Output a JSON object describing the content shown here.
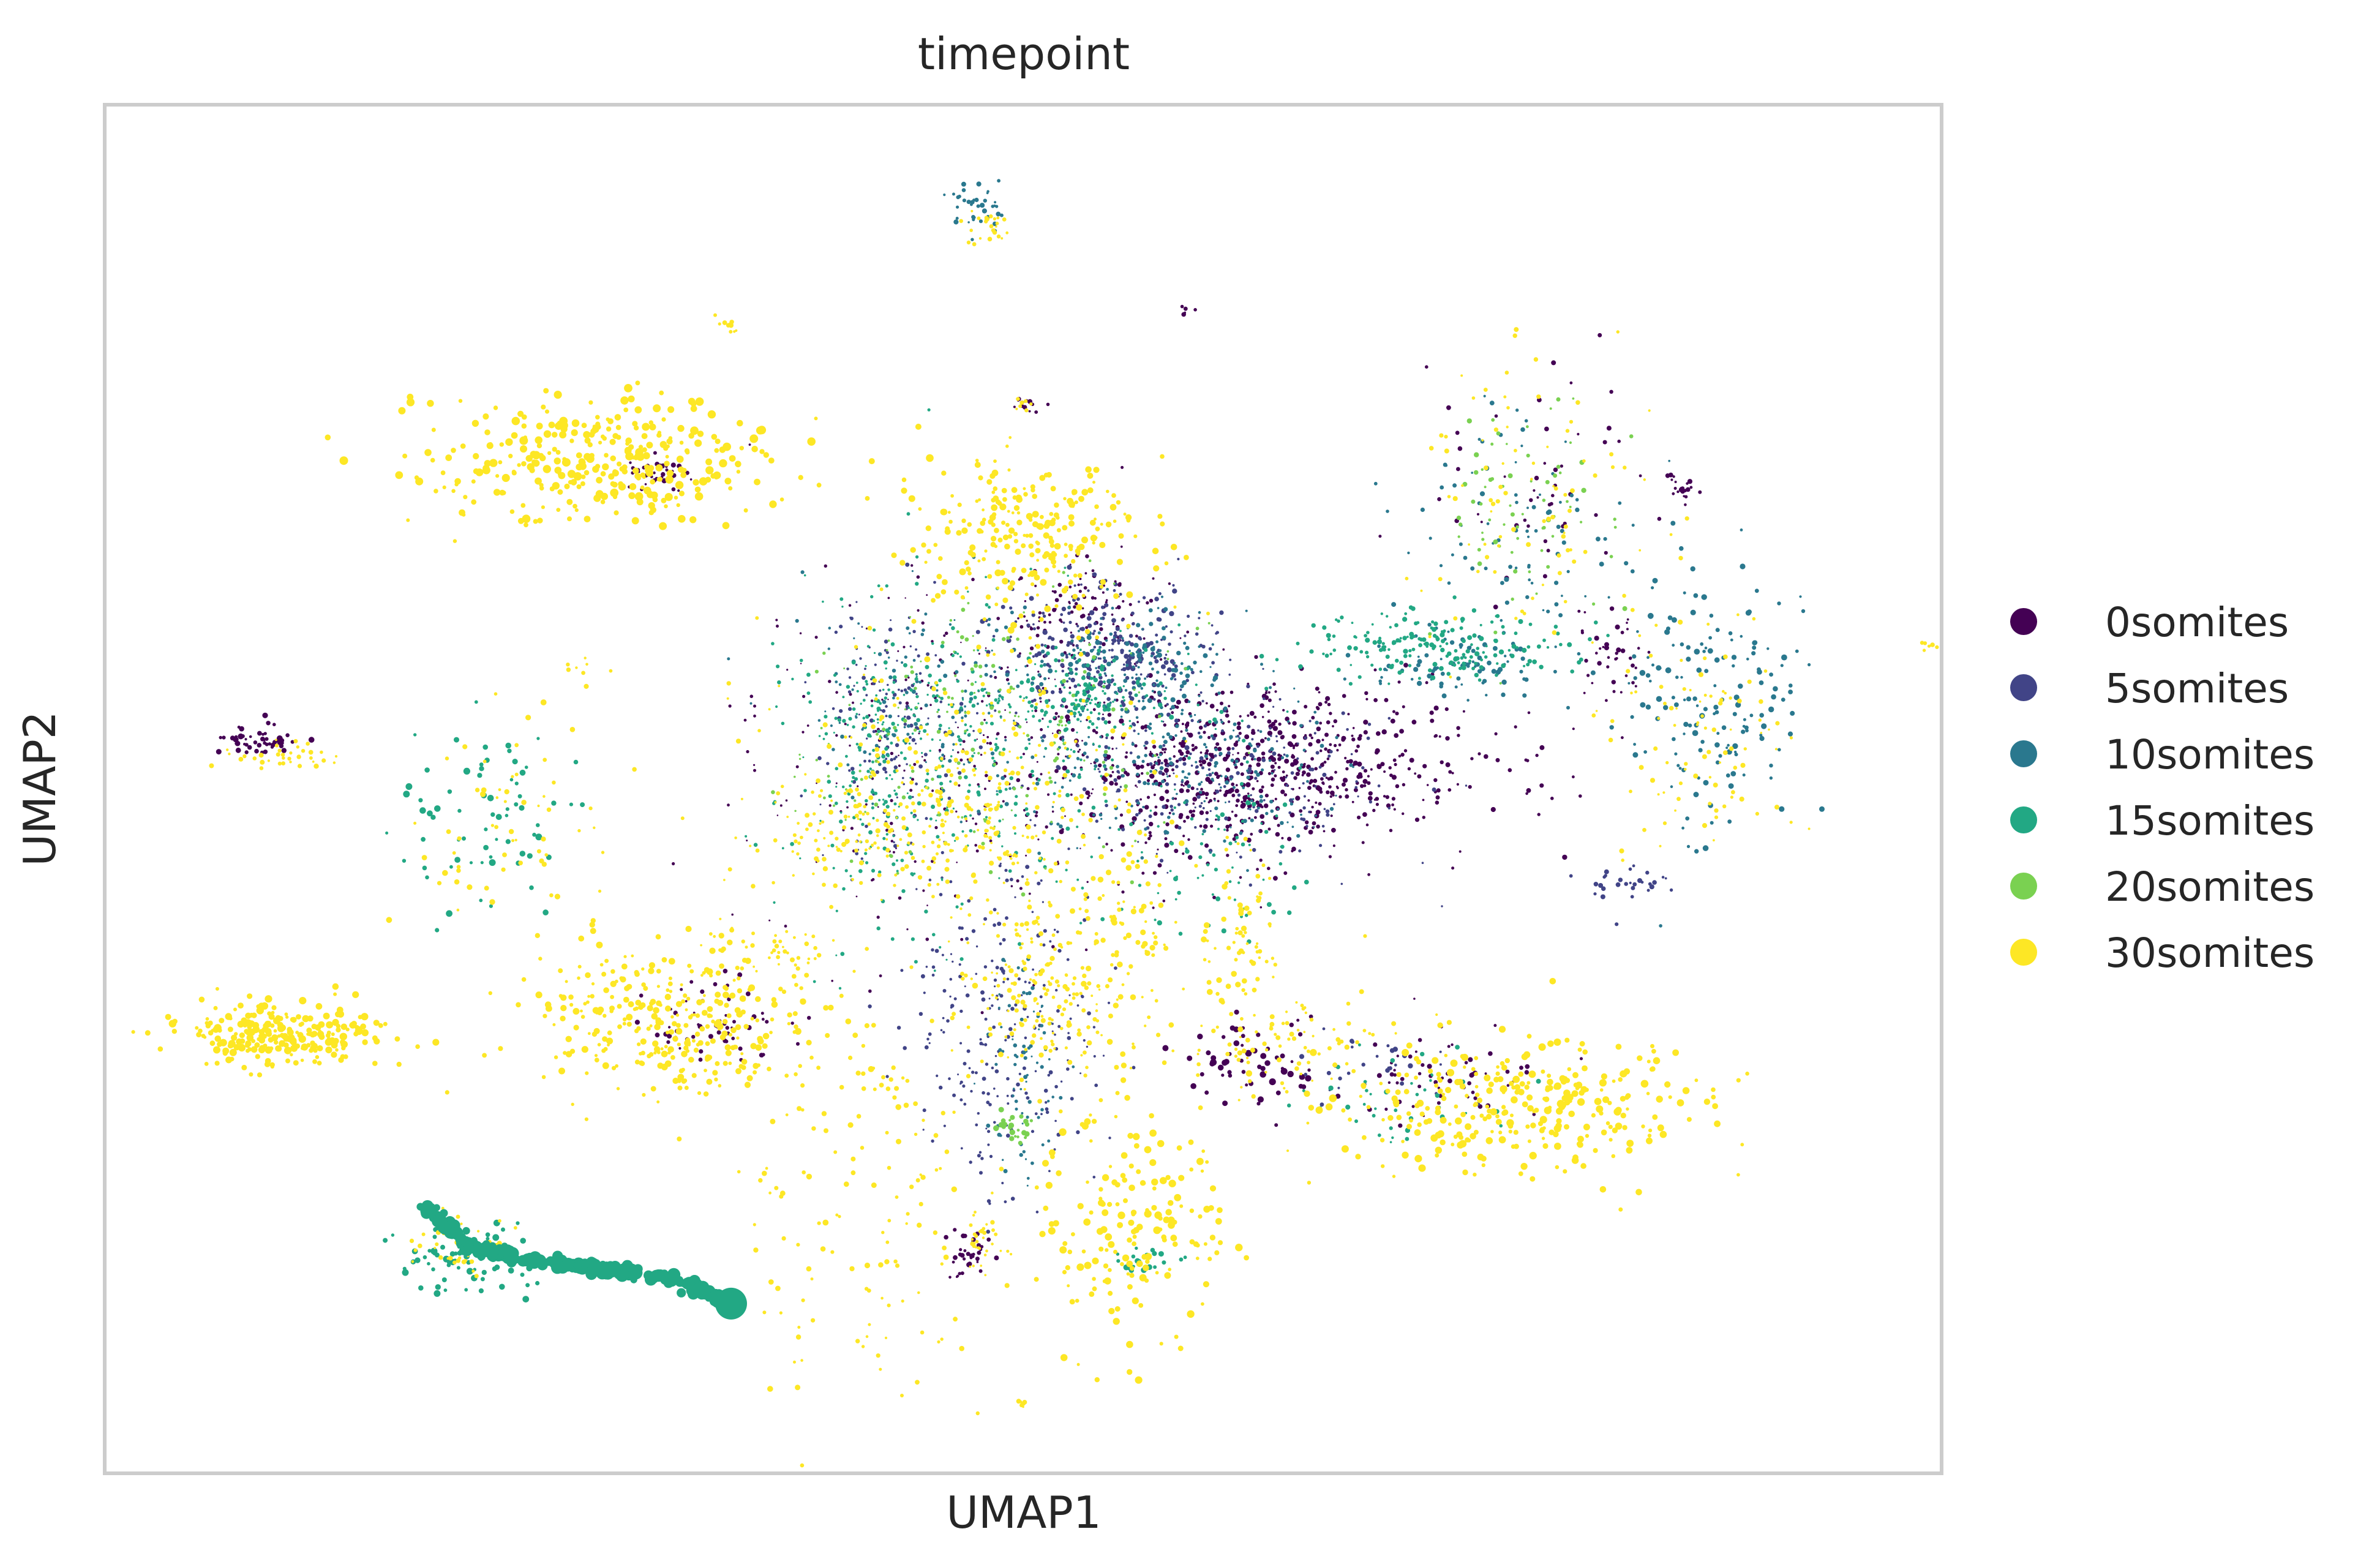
{
  "chart_data": {
    "type": "scatter",
    "title": "timepoint",
    "xlabel": "UMAP1",
    "ylabel": "UMAP2",
    "xlim": [
      0,
      1
    ],
    "ylim": [
      0,
      1
    ],
    "grid": false,
    "ticks": false,
    "legend_position": "right",
    "series": [
      {
        "name": "0somites",
        "color": "#440154"
      },
      {
        "name": "5somites",
        "color": "#414487"
      },
      {
        "name": "10somites",
        "color": "#2a788e"
      },
      {
        "name": "15somites",
        "color": "#22a884"
      },
      {
        "name": "20somites",
        "color": "#7ad151"
      },
      {
        "name": "30somites",
        "color": "#fde725"
      }
    ],
    "clusters": [
      {
        "series": "30somites",
        "cx": 0.095,
        "cy": 0.32,
        "sx": 0.03,
        "sy": 0.012,
        "n": 260,
        "r": 4.5
      },
      {
        "series": "0somites",
        "cx": 0.083,
        "cy": 0.535,
        "sx": 0.012,
        "sy": 0.006,
        "n": 50,
        "r": 3.5
      },
      {
        "series": "30somites",
        "cx": 0.1,
        "cy": 0.525,
        "sx": 0.015,
        "sy": 0.006,
        "n": 35,
        "r": 3.0
      },
      {
        "series": "15somites",
        "cx": 0.21,
        "cy": 0.48,
        "sx": 0.025,
        "sy": 0.035,
        "n": 70,
        "r": 4.0
      },
      {
        "series": "30somites",
        "cx": 0.215,
        "cy": 0.47,
        "sx": 0.03,
        "sy": 0.04,
        "n": 60,
        "r": 3.5
      },
      {
        "series": "30somites",
        "cx": 0.27,
        "cy": 0.74,
        "sx": 0.05,
        "sy": 0.022,
        "n": 330,
        "r": 5.0
      },
      {
        "series": "0somites",
        "cx": 0.3,
        "cy": 0.73,
        "sx": 0.008,
        "sy": 0.006,
        "n": 40,
        "r": 3.0
      },
      {
        "series": "30somites",
        "cx": 0.31,
        "cy": 0.33,
        "sx": 0.04,
        "sy": 0.03,
        "n": 330,
        "r": 4.0
      },
      {
        "series": "0somites",
        "cx": 0.335,
        "cy": 0.33,
        "sx": 0.02,
        "sy": 0.02,
        "n": 60,
        "r": 3.0
      },
      {
        "series": "15somites",
        "cx": 0.2,
        "cy": 0.155,
        "sx": 0.02,
        "sy": 0.012,
        "n": 80,
        "r": 4.0
      },
      {
        "series": "30somites",
        "cx": 0.195,
        "cy": 0.165,
        "sx": 0.015,
        "sy": 0.01,
        "n": 40,
        "r": 3.0
      },
      {
        "series": "30somites",
        "cx": 0.505,
        "cy": 0.68,
        "sx": 0.03,
        "sy": 0.03,
        "n": 260,
        "r": 4.0
      },
      {
        "series": "5somites",
        "cx": 0.545,
        "cy": 0.6,
        "sx": 0.03,
        "sy": 0.025,
        "n": 280,
        "r": 3.0
      },
      {
        "series": "10somites",
        "cx": 0.56,
        "cy": 0.59,
        "sx": 0.025,
        "sy": 0.02,
        "n": 140,
        "r": 3.0
      },
      {
        "series": "0somites",
        "cx": 0.53,
        "cy": 0.63,
        "sx": 0.02,
        "sy": 0.02,
        "n": 110,
        "r": 2.5
      },
      {
        "series": "15somites",
        "cx": 0.54,
        "cy": 0.57,
        "sx": 0.015,
        "sy": 0.015,
        "n": 80,
        "r": 3.0
      },
      {
        "series": "0somites",
        "cx": 0.625,
        "cy": 0.515,
        "sx": 0.06,
        "sy": 0.03,
        "n": 700,
        "r": 3.0
      },
      {
        "series": "10somites",
        "cx": 0.595,
        "cy": 0.52,
        "sx": 0.04,
        "sy": 0.03,
        "n": 220,
        "r": 2.5
      },
      {
        "series": "5somites",
        "cx": 0.6,
        "cy": 0.505,
        "sx": 0.05,
        "sy": 0.03,
        "n": 220,
        "r": 2.5
      },
      {
        "series": "15somites",
        "cx": 0.48,
        "cy": 0.52,
        "sx": 0.055,
        "sy": 0.06,
        "n": 300,
        "r": 2.5
      },
      {
        "series": "0somites",
        "cx": 0.47,
        "cy": 0.52,
        "sx": 0.06,
        "sy": 0.065,
        "n": 280,
        "r": 2.0
      },
      {
        "series": "30somites",
        "cx": 0.46,
        "cy": 0.51,
        "sx": 0.05,
        "sy": 0.05,
        "n": 260,
        "r": 3.0
      },
      {
        "series": "20somites",
        "cx": 0.48,
        "cy": 0.54,
        "sx": 0.05,
        "sy": 0.05,
        "n": 180,
        "r": 2.5
      },
      {
        "series": "10somites",
        "cx": 0.46,
        "cy": 0.56,
        "sx": 0.04,
        "sy": 0.04,
        "n": 160,
        "r": 2.5
      },
      {
        "series": "5somites",
        "cx": 0.43,
        "cy": 0.54,
        "sx": 0.02,
        "sy": 0.05,
        "n": 150,
        "r": 2.5
      },
      {
        "series": "15somites",
        "cx": 0.42,
        "cy": 0.52,
        "sx": 0.015,
        "sy": 0.06,
        "n": 120,
        "r": 2.5
      },
      {
        "series": "30somites",
        "cx": 0.44,
        "cy": 0.465,
        "sx": 0.05,
        "sy": 0.02,
        "n": 150,
        "r": 3.0
      },
      {
        "series": "15somites",
        "cx": 0.48,
        "cy": 0.56,
        "sx": 0.05,
        "sy": 0.015,
        "n": 100,
        "r": 2.5
      },
      {
        "series": "30somites",
        "cx": 0.505,
        "cy": 0.36,
        "sx": 0.02,
        "sy": 0.03,
        "n": 160,
        "r": 3.0
      },
      {
        "series": "5somites",
        "cx": 0.49,
        "cy": 0.33,
        "sx": 0.025,
        "sy": 0.06,
        "n": 240,
        "r": 2.5
      },
      {
        "series": "10somites",
        "cx": 0.5,
        "cy": 0.3,
        "sx": 0.01,
        "sy": 0.04,
        "n": 80,
        "r": 2.5
      },
      {
        "series": "30somites",
        "cx": 0.55,
        "cy": 0.38,
        "sx": 0.015,
        "sy": 0.06,
        "n": 120,
        "r": 3.5
      },
      {
        "series": "15somites",
        "cx": 0.61,
        "cy": 0.45,
        "sx": 0.02,
        "sy": 0.03,
        "n": 60,
        "r": 3.0
      },
      {
        "series": "30somites",
        "cx": 0.62,
        "cy": 0.38,
        "sx": 0.01,
        "sy": 0.04,
        "n": 80,
        "r": 3.5
      },
      {
        "series": "15somites",
        "cx": 0.725,
        "cy": 0.605,
        "sx": 0.035,
        "sy": 0.012,
        "n": 200,
        "r": 3.0
      },
      {
        "series": "10somites",
        "cx": 0.74,
        "cy": 0.59,
        "sx": 0.025,
        "sy": 0.012,
        "n": 90,
        "r": 3.0
      },
      {
        "series": "0somites",
        "cx": 0.86,
        "cy": 0.72,
        "sx": 0.005,
        "sy": 0.004,
        "n": 20,
        "r": 3.0
      },
      {
        "series": "5somites",
        "cx": 0.83,
        "cy": 0.43,
        "sx": 0.012,
        "sy": 0.006,
        "n": 30,
        "r": 3.0
      },
      {
        "series": "30somites",
        "cx": 0.36,
        "cy": 0.38,
        "sx": 0.02,
        "sy": 0.01,
        "n": 50,
        "r": 3.0
      },
      {
        "series": "30somites",
        "cx": 0.42,
        "cy": 0.2,
        "sx": 0.04,
        "sy": 0.09,
        "n": 150,
        "r": 3.5
      },
      {
        "series": "20somites",
        "cx": 0.495,
        "cy": 0.25,
        "sx": 0.007,
        "sy": 0.006,
        "n": 25,
        "r": 3.5
      },
      {
        "series": "30somites",
        "cx": 0.56,
        "cy": 0.18,
        "sx": 0.025,
        "sy": 0.04,
        "n": 170,
        "r": 4.5
      },
      {
        "series": "15somites",
        "cx": 0.57,
        "cy": 0.155,
        "sx": 0.01,
        "sy": 0.004,
        "n": 20,
        "r": 3.5
      },
      {
        "series": "0somites",
        "cx": 0.47,
        "cy": 0.16,
        "sx": 0.006,
        "sy": 0.01,
        "n": 35,
        "r": 3.0
      },
      {
        "series": "30somites",
        "cx": 0.475,
        "cy": 0.17,
        "sx": 0.008,
        "sy": 0.012,
        "n": 30,
        "r": 3.0
      },
      {
        "series": "0somites",
        "cx": 0.625,
        "cy": 0.3,
        "sx": 0.02,
        "sy": 0.015,
        "n": 60,
        "r": 4.0
      },
      {
        "series": "30somites",
        "cx": 0.65,
        "cy": 0.31,
        "sx": 0.03,
        "sy": 0.025,
        "n": 80,
        "r": 3.0
      },
      {
        "series": "30somites",
        "cx": 0.77,
        "cy": 0.27,
        "sx": 0.05,
        "sy": 0.025,
        "n": 320,
        "r": 4.5
      },
      {
        "series": "0somites",
        "cx": 0.73,
        "cy": 0.29,
        "sx": 0.03,
        "sy": 0.015,
        "n": 60,
        "r": 3.0
      },
      {
        "series": "15somites",
        "cx": 0.7,
        "cy": 0.27,
        "sx": 0.03,
        "sy": 0.02,
        "n": 40,
        "r": 3.0
      },
      {
        "series": "5somites",
        "cx": 0.7,
        "cy": 0.3,
        "sx": 0.02,
        "sy": 0.015,
        "n": 30,
        "r": 3.0
      },
      {
        "series": "10somites",
        "cx": 0.875,
        "cy": 0.57,
        "sx": 0.025,
        "sy": 0.05,
        "n": 160,
        "r": 3.5
      },
      {
        "series": "30somites",
        "cx": 0.87,
        "cy": 0.54,
        "sx": 0.025,
        "sy": 0.05,
        "n": 90,
        "r": 3.0
      },
      {
        "series": "0somites",
        "cx": 0.82,
        "cy": 0.6,
        "sx": 0.01,
        "sy": 0.02,
        "n": 40,
        "r": 3.0
      },
      {
        "series": "10somites",
        "cx": 0.77,
        "cy": 0.69,
        "sx": 0.035,
        "sy": 0.045,
        "n": 90,
        "r": 3.0
      },
      {
        "series": "30somites",
        "cx": 0.78,
        "cy": 0.7,
        "sx": 0.035,
        "sy": 0.05,
        "n": 90,
        "r": 3.0
      },
      {
        "series": "20somites",
        "cx": 0.77,
        "cy": 0.71,
        "sx": 0.03,
        "sy": 0.04,
        "n": 70,
        "r": 3.0
      },
      {
        "series": "0somites",
        "cx": 0.78,
        "cy": 0.72,
        "sx": 0.03,
        "sy": 0.04,
        "n": 50,
        "r": 3.0
      },
      {
        "series": "10somites",
        "cx": 0.475,
        "cy": 0.925,
        "sx": 0.008,
        "sy": 0.008,
        "n": 40,
        "r": 3.0
      },
      {
        "series": "30somites",
        "cx": 0.48,
        "cy": 0.91,
        "sx": 0.007,
        "sy": 0.008,
        "n": 25,
        "r": 3.0
      },
      {
        "series": "30somites",
        "cx": 0.338,
        "cy": 0.84,
        "sx": 0.004,
        "sy": 0.004,
        "n": 10,
        "r": 3.0
      },
      {
        "series": "0somites",
        "cx": 0.503,
        "cy": 0.78,
        "sx": 0.005,
        "sy": 0.003,
        "n": 12,
        "r": 3.0
      },
      {
        "series": "30somites",
        "cx": 0.5,
        "cy": 0.78,
        "sx": 0.004,
        "sy": 0.003,
        "n": 8,
        "r": 3.0
      },
      {
        "series": "0somites",
        "cx": 0.59,
        "cy": 0.85,
        "sx": 0.003,
        "sy": 0.002,
        "n": 6,
        "r": 3.0
      },
      {
        "series": "30somites",
        "cx": 0.993,
        "cy": 0.605,
        "sx": 0.004,
        "sy": 0.002,
        "n": 8,
        "r": 3.0
      },
      {
        "series": "30somites",
        "cx": 0.5,
        "cy": 0.05,
        "sx": 0.002,
        "sy": 0.002,
        "n": 6,
        "r": 3.0
      },
      {
        "series": "30somites",
        "cx": 0.26,
        "cy": 0.59,
        "sx": 0.005,
        "sy": 0.003,
        "n": 6,
        "r": 3.0
      }
    ],
    "trajectory": {
      "series": "15somites",
      "points": [
        [
          0.175,
          0.195
        ],
        [
          0.2,
          0.165
        ],
        [
          0.23,
          0.155
        ],
        [
          0.27,
          0.15
        ],
        [
          0.31,
          0.142
        ],
        [
          0.34,
          0.125
        ]
      ],
      "end_point": [
        0.341,
        0.124
      ]
    }
  }
}
